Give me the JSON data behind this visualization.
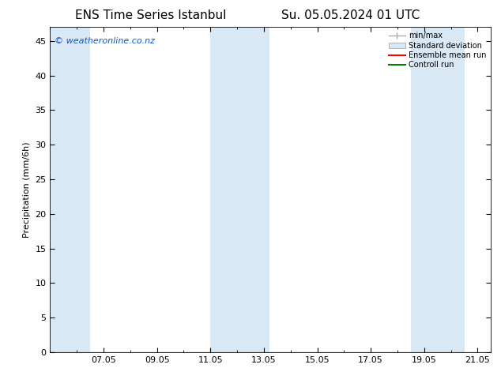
{
  "title_left": "ENS Time Series Istanbul",
  "title_right": "Su. 05.05.2024 01 UTC",
  "ylabel": "Precipitation (mm/6h)",
  "xlim_start": 5.0,
  "xlim_end": 21.5,
  "ylim": [
    0,
    47
  ],
  "yticks": [
    0,
    5,
    10,
    15,
    20,
    25,
    30,
    35,
    40,
    45
  ],
  "xtick_labels": [
    "07.05",
    "09.05",
    "11.05",
    "13.05",
    "15.05",
    "17.05",
    "19.05",
    "21.05"
  ],
  "xtick_positions": [
    7,
    9,
    11,
    13,
    15,
    17,
    19,
    21
  ],
  "watermark": "© weatheronline.co.nz",
  "watermark_color": "#1155cc",
  "background_color": "#ffffff",
  "plot_bg_color": "#ffffff",
  "shaded_regions": [
    {
      "xmin": 5.0,
      "xmax": 6.5,
      "color": "#d8e8f5"
    },
    {
      "xmin": 11.0,
      "xmax": 13.2,
      "color": "#d8e8f5"
    },
    {
      "xmin": 18.5,
      "xmax": 20.5,
      "color": "#d8e8f5"
    }
  ],
  "legend_labels": [
    "min/max",
    "Standard deviation",
    "Ensemble mean run",
    "Controll run"
  ],
  "legend_colors_line": [
    "#999999",
    "#d8e8f5",
    "#ff0000",
    "#008000"
  ],
  "title_fontsize": 11,
  "axis_fontsize": 8,
  "tick_fontsize": 8,
  "watermark_fontsize": 8
}
